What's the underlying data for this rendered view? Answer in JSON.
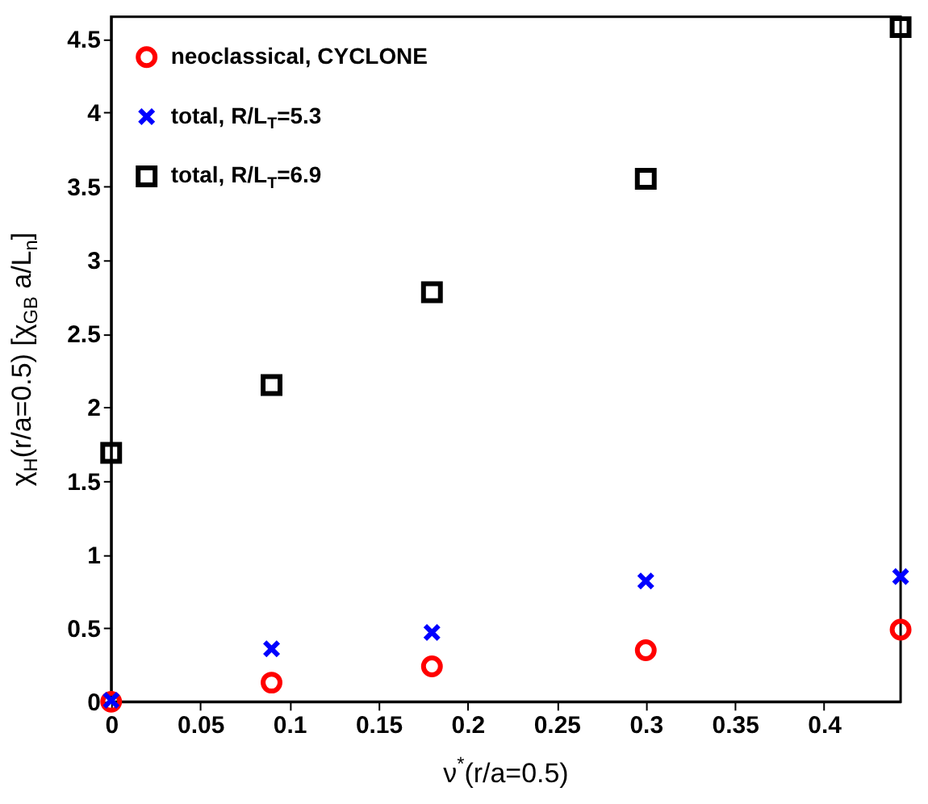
{
  "chart_data": {
    "type": "scatter",
    "xlabel": "ν$^{*}$(r/a=0.5)",
    "ylabel": "χ$_{H}$(r/a=0.5) [χ$_{GB}$ a/L$_{n}$]",
    "x": [
      0,
      0.09,
      0.18,
      0.3,
      0.443
    ],
    "series": [
      {
        "name": "neoclassical, CYCLONE",
        "color": "#ff0000",
        "marker": "circle",
        "values": [
          0,
          0.13,
          0.24,
          0.35,
          0.49
        ]
      },
      {
        "name": "total, R/L$_{T}$=5.3",
        "color": "#0000ff",
        "marker": "cross",
        "values": [
          0.01,
          0.36,
          0.47,
          0.82,
          0.85
        ]
      },
      {
        "name": "total, R/L$_{T}$=6.9",
        "color": "#000000",
        "marker": "square",
        "values": [
          1.69,
          2.15,
          2.78,
          3.55,
          4.58
        ]
      }
    ],
    "xlim": [
      0,
      0.443
    ],
    "xticks": [
      0,
      0.05,
      0.1,
      0.15,
      0.2,
      0.25,
      0.3,
      0.35,
      0.4
    ],
    "ylim": [
      0,
      4.65
    ],
    "yticks": [
      0,
      0.5,
      1,
      1.5,
      2,
      2.5,
      3,
      3.5,
      4,
      4.5
    ],
    "grid": false,
    "legend": "top left"
  }
}
